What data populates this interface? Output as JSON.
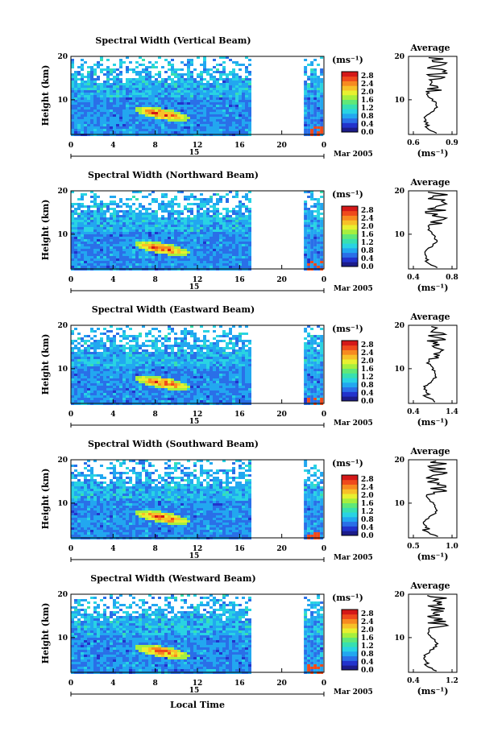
{
  "figure": {
    "date_label": "Mar 2005",
    "xlabel": "Local Time",
    "day_label": "15"
  },
  "colors": {
    "scale": [
      "#1c1c8a",
      "#2233cc",
      "#2a6fe8",
      "#22a7f0",
      "#29d3e3",
      "#38e0b0",
      "#60e878",
      "#a6ef3e",
      "#e8f030",
      "#f7c028",
      "#f78a20",
      "#ef4a1c",
      "#d41818"
    ],
    "blank": "#ffffff"
  },
  "chart_data": [
    {
      "type": "heatmap",
      "title": "Spectral Width (Vertical Beam)",
      "ylabel": "Height (km)",
      "xlim": [
        0,
        24
      ],
      "ylim": [
        2,
        20
      ],
      "xticks": [
        "0",
        "4",
        "8",
        "12",
        "16",
        "20",
        "0"
      ],
      "yticks": [
        "10",
        "20"
      ],
      "colorbar": {
        "unit": "(ms⁻¹)",
        "ticks": [
          "0.0",
          "0.4",
          "0.8",
          "1.2",
          "1.6",
          "2.0",
          "2.4",
          "2.8"
        ],
        "range": [
          0,
          3.0
        ]
      },
      "average": {
        "title": "Average",
        "xlabel": "(ms⁻¹)",
        "xlim": [
          0.6,
          0.9
        ],
        "xticks": [
          "0.6",
          "0.9"
        ],
        "ylim": [
          2,
          20
        ],
        "yticks": [
          "10",
          "20"
        ]
      }
    },
    {
      "type": "heatmap",
      "title": "Spectral Width (Northward Beam)",
      "ylabel": "Height (km)",
      "xlim": [
        0,
        24
      ],
      "ylim": [
        2,
        20
      ],
      "xticks": [
        "0",
        "4",
        "8",
        "12",
        "16",
        "20",
        "0"
      ],
      "yticks": [
        "10",
        "20"
      ],
      "colorbar": {
        "unit": "(ms⁻¹)",
        "ticks": [
          "0.0",
          "0.4",
          "0.8",
          "1.2",
          "1.6",
          "2.0",
          "2.4",
          "2.8"
        ],
        "range": [
          0,
          3.0
        ]
      },
      "average": {
        "title": "Average",
        "xlabel": "(ms⁻¹)",
        "xlim": [
          0.4,
          0.8
        ],
        "xticks": [
          "0.4",
          "0.8"
        ],
        "ylim": [
          2,
          20
        ],
        "yticks": [
          "10",
          "20"
        ]
      }
    },
    {
      "type": "heatmap",
      "title": "Spectral Width (Eastward Beam)",
      "ylabel": "Height (km)",
      "xlim": [
        0,
        24
      ],
      "ylim": [
        2,
        20
      ],
      "xticks": [
        "0",
        "4",
        "8",
        "12",
        "16",
        "20",
        "0"
      ],
      "yticks": [
        "10",
        "20"
      ],
      "colorbar": {
        "unit": "(ms⁻¹)",
        "ticks": [
          "0.0",
          "0.4",
          "0.8",
          "1.2",
          "1.6",
          "2.0",
          "2.4",
          "2.8"
        ],
        "range": [
          0,
          3.0
        ]
      },
      "average": {
        "title": "Average",
        "xlabel": "(ms⁻¹)",
        "xlim": [
          0.4,
          1.4
        ],
        "xticks": [
          "0.4",
          "1.4"
        ],
        "ylim": [
          2,
          20
        ],
        "yticks": [
          "10",
          "20"
        ]
      }
    },
    {
      "type": "heatmap",
      "title": "Spectral Width (Southward Beam)",
      "ylabel": "Height (km)",
      "xlim": [
        0,
        24
      ],
      "ylim": [
        2,
        20
      ],
      "xticks": [
        "0",
        "4",
        "8",
        "12",
        "16",
        "20",
        "0"
      ],
      "yticks": [
        "10",
        "20"
      ],
      "colorbar": {
        "unit": "(ms⁻¹)",
        "ticks": [
          "0.0",
          "0.4",
          "0.8",
          "1.2",
          "1.6",
          "2.0",
          "2.4",
          "2.8"
        ],
        "range": [
          0,
          3.0
        ]
      },
      "average": {
        "title": "Average",
        "xlabel": "(ms⁻¹)",
        "xlim": [
          0.5,
          1.0
        ],
        "xticks": [
          "0.5",
          "1.0"
        ],
        "ylim": [
          2,
          20
        ],
        "yticks": [
          "10",
          "20"
        ]
      }
    },
    {
      "type": "heatmap",
      "title": "Spectral Width (Westward Beam)",
      "ylabel": "Height (km)",
      "xlim": [
        0,
        24
      ],
      "ylim": [
        2,
        20
      ],
      "xticks": [
        "0",
        "4",
        "8",
        "12",
        "16",
        "20",
        "0"
      ],
      "yticks": [
        "10",
        "20"
      ],
      "colorbar": {
        "unit": "(ms⁻¹)",
        "ticks": [
          "0.0",
          "0.4",
          "0.8",
          "1.2",
          "1.6",
          "2.0",
          "2.4",
          "2.8"
        ],
        "range": [
          0,
          3.0
        ]
      },
      "average": {
        "title": "Average",
        "xlabel": "(ms⁻¹)",
        "xlim": [
          0.4,
          1.2
        ],
        "xticks": [
          "0.4",
          "1.2"
        ],
        "ylim": [
          2,
          20
        ],
        "yticks": [
          "10",
          "20"
        ]
      }
    }
  ]
}
